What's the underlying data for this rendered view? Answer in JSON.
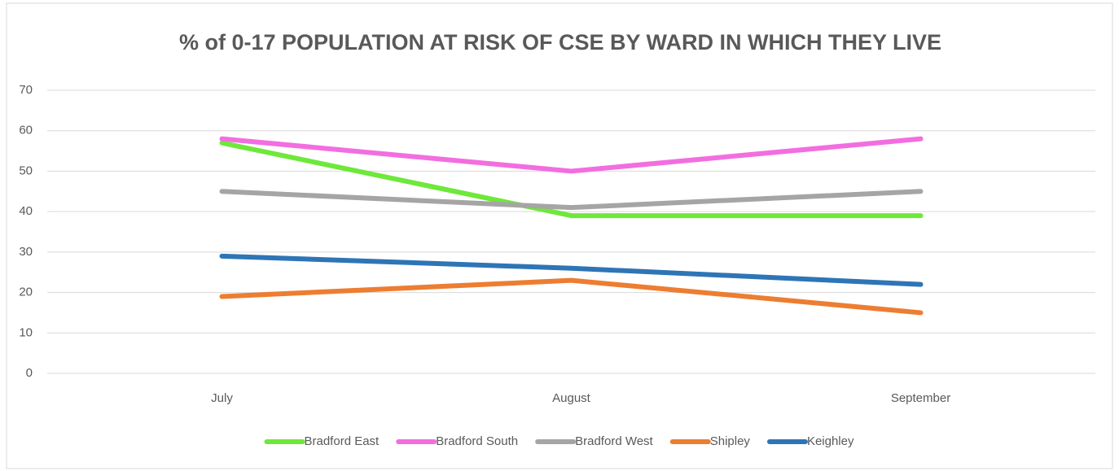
{
  "chart_data": {
    "type": "line",
    "title": "% of 0-17 POPULATION AT RISK OF CSE BY WARD IN WHICH THEY LIVE",
    "categories": [
      "July",
      "August",
      "September"
    ],
    "series": [
      {
        "name": "Bradford East",
        "color": "#6ee83a",
        "values": [
          57,
          39,
          39
        ]
      },
      {
        "name": "Bradford South",
        "color": "#f26ee0",
        "values": [
          58,
          50,
          58
        ]
      },
      {
        "name": "Bradford West",
        "color": "#a5a5a5",
        "values": [
          45,
          41,
          45
        ]
      },
      {
        "name": "Shipley",
        "color": "#ed7d31",
        "values": [
          19,
          23,
          15
        ]
      },
      {
        "name": "Keighley",
        "color": "#2e75b6",
        "values": [
          29,
          26,
          22
        ]
      }
    ],
    "ylim": [
      0,
      70
    ],
    "yticks": [
      0,
      10,
      20,
      30,
      40,
      50,
      60,
      70
    ],
    "grid": true,
    "legend": "bottom"
  }
}
